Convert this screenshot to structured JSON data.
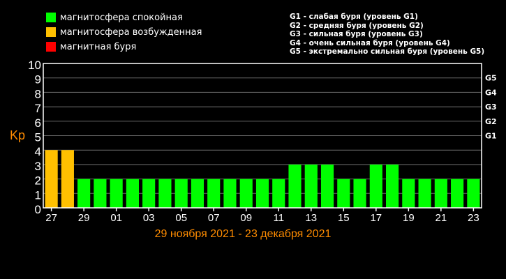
{
  "legend": {
    "items": [
      {
        "label": "магнитосфера спокойная",
        "color": "#00ff00"
      },
      {
        "label": "магнитосфера возбужденная",
        "color": "#ffc000"
      },
      {
        "label": "магнитная буря",
        "color": "#ff0000"
      }
    ]
  },
  "storm_scale": [
    "G1 - слабая буря (уровень G1)",
    "G2 - средняя буря (уровень G2)",
    "G3 - сильная буря (уровень G3)",
    "G4 - очень сильная буря (уровень G4)",
    "G5 - экстремально сильная буря (уровень G5)"
  ],
  "chart_data": {
    "type": "bar",
    "ylabel": "Kp",
    "xlabel": "29 ноября 2021 - 23 декабря 2021",
    "ylim": [
      0,
      10
    ],
    "yticks": [
      0,
      1,
      2,
      3,
      4,
      5,
      6,
      7,
      8,
      9,
      10
    ],
    "right_ticks": [
      {
        "label": "G1",
        "value": 5
      },
      {
        "label": "G2",
        "value": 6
      },
      {
        "label": "G3",
        "value": 7
      },
      {
        "label": "G4",
        "value": 8
      },
      {
        "label": "G5",
        "value": 9
      }
    ],
    "x_tick_labels": [
      "27",
      "29",
      "01",
      "03",
      "05",
      "07",
      "09",
      "11",
      "13",
      "15",
      "17",
      "19",
      "21",
      "23"
    ],
    "values": [
      4,
      4,
      2,
      2,
      2,
      2,
      2,
      2,
      2,
      2,
      2,
      2,
      2,
      2,
      2,
      3,
      3,
      3,
      2,
      2,
      3,
      3,
      2,
      2,
      2,
      2,
      2
    ],
    "colors": {
      "quiet": "#00ff00",
      "active": "#ffc000",
      "storm": "#ff0000",
      "axis_text": "#ff8c00"
    }
  }
}
